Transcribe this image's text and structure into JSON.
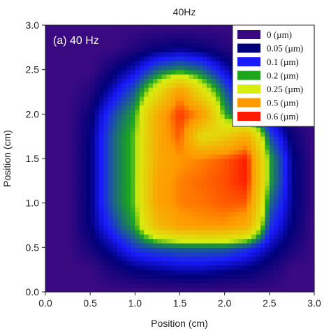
{
  "chart_data": {
    "type": "heatmap",
    "title": "40Hz",
    "panel_label": "(a) 40 Hz",
    "xlabel": "Position (cm)",
    "ylabel": "Position (cm)",
    "xlim": [
      0,
      3
    ],
    "ylim": [
      0,
      3
    ],
    "x_ticks": [
      "0.0",
      "0.5",
      "1.0",
      "1.5",
      "2.0",
      "2.5",
      "3.0"
    ],
    "y_ticks": [
      "0.0",
      "0.5",
      "1.0",
      "1.5",
      "2.0",
      "2.5",
      "3.0"
    ],
    "legend": {
      "placement": "top-right",
      "entries": [
        {
          "label": "0 (µm)",
          "value": 0,
          "color": "#3a0a82"
        },
        {
          "label": "0.05 (µm)",
          "value": 0.05,
          "color": "#00007a"
        },
        {
          "label": "0.1 (µm)",
          "value": 0.1,
          "color": "#1a1aff"
        },
        {
          "label": "0.2 (µm)",
          "value": 0.2,
          "color": "#1ca61c"
        },
        {
          "label": "0.25 (µm)",
          "value": 0.25,
          "color": "#d8ee10"
        },
        {
          "label": "0.5 (µm)",
          "value": 0.5,
          "color": "#ff9a00"
        },
        {
          "label": "0.6 (µm)",
          "value": 0.6,
          "color": "#ff1a00"
        }
      ]
    },
    "grid": {
      "x": [
        0,
        0.25,
        0.5,
        0.75,
        1.0,
        1.25,
        1.5,
        1.75,
        2.0,
        2.25,
        2.5,
        2.75,
        3.0
      ],
      "y": [
        0,
        0.25,
        0.5,
        0.75,
        1.0,
        1.25,
        1.5,
        1.75,
        2.0,
        2.25,
        2.5,
        2.75,
        3.0
      ],
      "z": [
        [
          0,
          0,
          0,
          0,
          0,
          0,
          0,
          0,
          0,
          0,
          0,
          0,
          0
        ],
        [
          0,
          0,
          0,
          0.03,
          0.05,
          0.06,
          0.07,
          0.07,
          0.06,
          0.05,
          0.03,
          0,
          0
        ],
        [
          0,
          0,
          0.03,
          0.07,
          0.12,
          0.14,
          0.15,
          0.15,
          0.15,
          0.12,
          0.07,
          0.03,
          0
        ],
        [
          0,
          0,
          0.05,
          0.12,
          0.2,
          0.4,
          0.48,
          0.5,
          0.5,
          0.45,
          0.12,
          0.05,
          0
        ],
        [
          0,
          0,
          0.05,
          0.15,
          0.22,
          0.47,
          0.52,
          0.53,
          0.55,
          0.55,
          0.16,
          0.06,
          0
        ],
        [
          0,
          0,
          0.05,
          0.15,
          0.22,
          0.47,
          0.52,
          0.54,
          0.56,
          0.6,
          0.2,
          0.06,
          0
        ],
        [
          0,
          0,
          0.05,
          0.15,
          0.22,
          0.45,
          0.5,
          0.52,
          0.55,
          0.6,
          0.2,
          0.06,
          0
        ],
        [
          0,
          0,
          0.05,
          0.15,
          0.22,
          0.45,
          0.55,
          0.3,
          0.35,
          0.45,
          0.14,
          0.04,
          0
        ],
        [
          0,
          0,
          0.04,
          0.13,
          0.2,
          0.45,
          0.58,
          0.5,
          0.2,
          0.12,
          0.07,
          0.02,
          0
        ],
        [
          0,
          0,
          0.02,
          0.08,
          0.15,
          0.3,
          0.5,
          0.3,
          0.15,
          0.06,
          0.02,
          0,
          0
        ],
        [
          0,
          0,
          0,
          0.04,
          0.08,
          0.15,
          0.18,
          0.15,
          0.08,
          0.03,
          0,
          0,
          0
        ],
        [
          0,
          0,
          0,
          0,
          0.02,
          0.04,
          0.05,
          0.04,
          0.02,
          0,
          0,
          0,
          0
        ],
        [
          0,
          0,
          0,
          0,
          0,
          0,
          0,
          0,
          0,
          0,
          0,
          0,
          0
        ]
      ]
    }
  }
}
